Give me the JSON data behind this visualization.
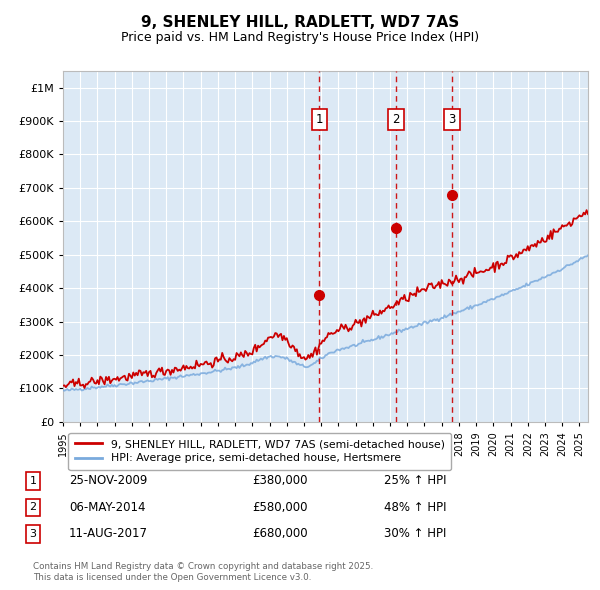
{
  "title": "9, SHENLEY HILL, RADLETT, WD7 7AS",
  "subtitle": "Price paid vs. HM Land Registry's House Price Index (HPI)",
  "red_label": "9, SHENLEY HILL, RADLETT, WD7 7AS (semi-detached house)",
  "blue_label": "HPI: Average price, semi-detached house, Hertsmere",
  "transactions": [
    {
      "num": 1,
      "date": "25-NOV-2009",
      "price": 380000,
      "hpi_pct": "25% ↑ HPI",
      "date_val": 2009.9
    },
    {
      "num": 2,
      "date": "06-MAY-2014",
      "price": 580000,
      "hpi_pct": "48% ↑ HPI",
      "date_val": 2014.35
    },
    {
      "num": 3,
      "date": "11-AUG-2017",
      "price": 680000,
      "hpi_pct": "30% ↑ HPI",
      "date_val": 2017.6
    }
  ],
  "footnote1": "Contains HM Land Registry data © Crown copyright and database right 2025.",
  "footnote2": "This data is licensed under the Open Government Licence v3.0.",
  "ylim": [
    0,
    1050000
  ],
  "xlim_start": 1995.0,
  "xlim_end": 2025.5,
  "background_color": "#ffffff",
  "plot_bg_color": "#dce9f5",
  "red_color": "#cc0000",
  "blue_color": "#7aaadd",
  "grid_color": "#ffffff",
  "vline_color": "#cc0000"
}
